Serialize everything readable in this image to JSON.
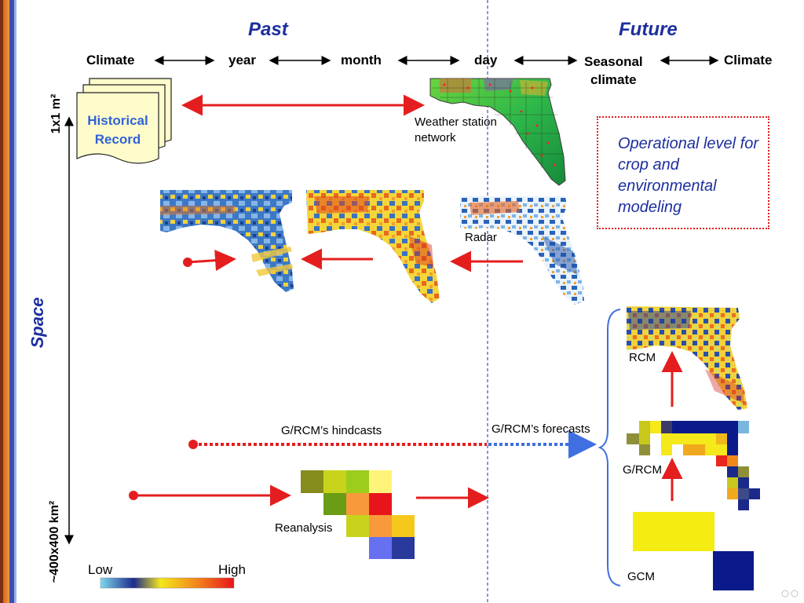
{
  "headers": {
    "past": "Past",
    "future": "Future"
  },
  "timescale": {
    "climate_left": "Climate",
    "year": "year",
    "month": "month",
    "day": "day",
    "seasonal_line1": "Seasonal",
    "seasonal_line2": "climate",
    "climate_right": "Climate"
  },
  "space_axis": {
    "label": "Space",
    "top_label": "1x1 m²",
    "bottom_label": "~400x400 km²"
  },
  "historical_record": {
    "line1": "Historical",
    "line2": "Record"
  },
  "labels": {
    "weather_station_line1": "Weather station",
    "weather_station_line2": "network",
    "radar": "Radar",
    "rcm": "RCM",
    "grcm": "G/RCM",
    "gcm": "GCM",
    "reanalysis": "Reanalysis",
    "hindcasts": "G/RCM’s hindcasts",
    "forecasts": "G/RCM’s forecasts"
  },
  "operational_note": "Operational level for crop and environmental modeling",
  "legend": {
    "low": "Low",
    "high": "High"
  },
  "colors": {
    "accent_blue": "#1d2f9e",
    "arrow_red": "#e41e1e",
    "forecast_blue": "#3f6fe0",
    "note_border": "#e41e1e"
  }
}
